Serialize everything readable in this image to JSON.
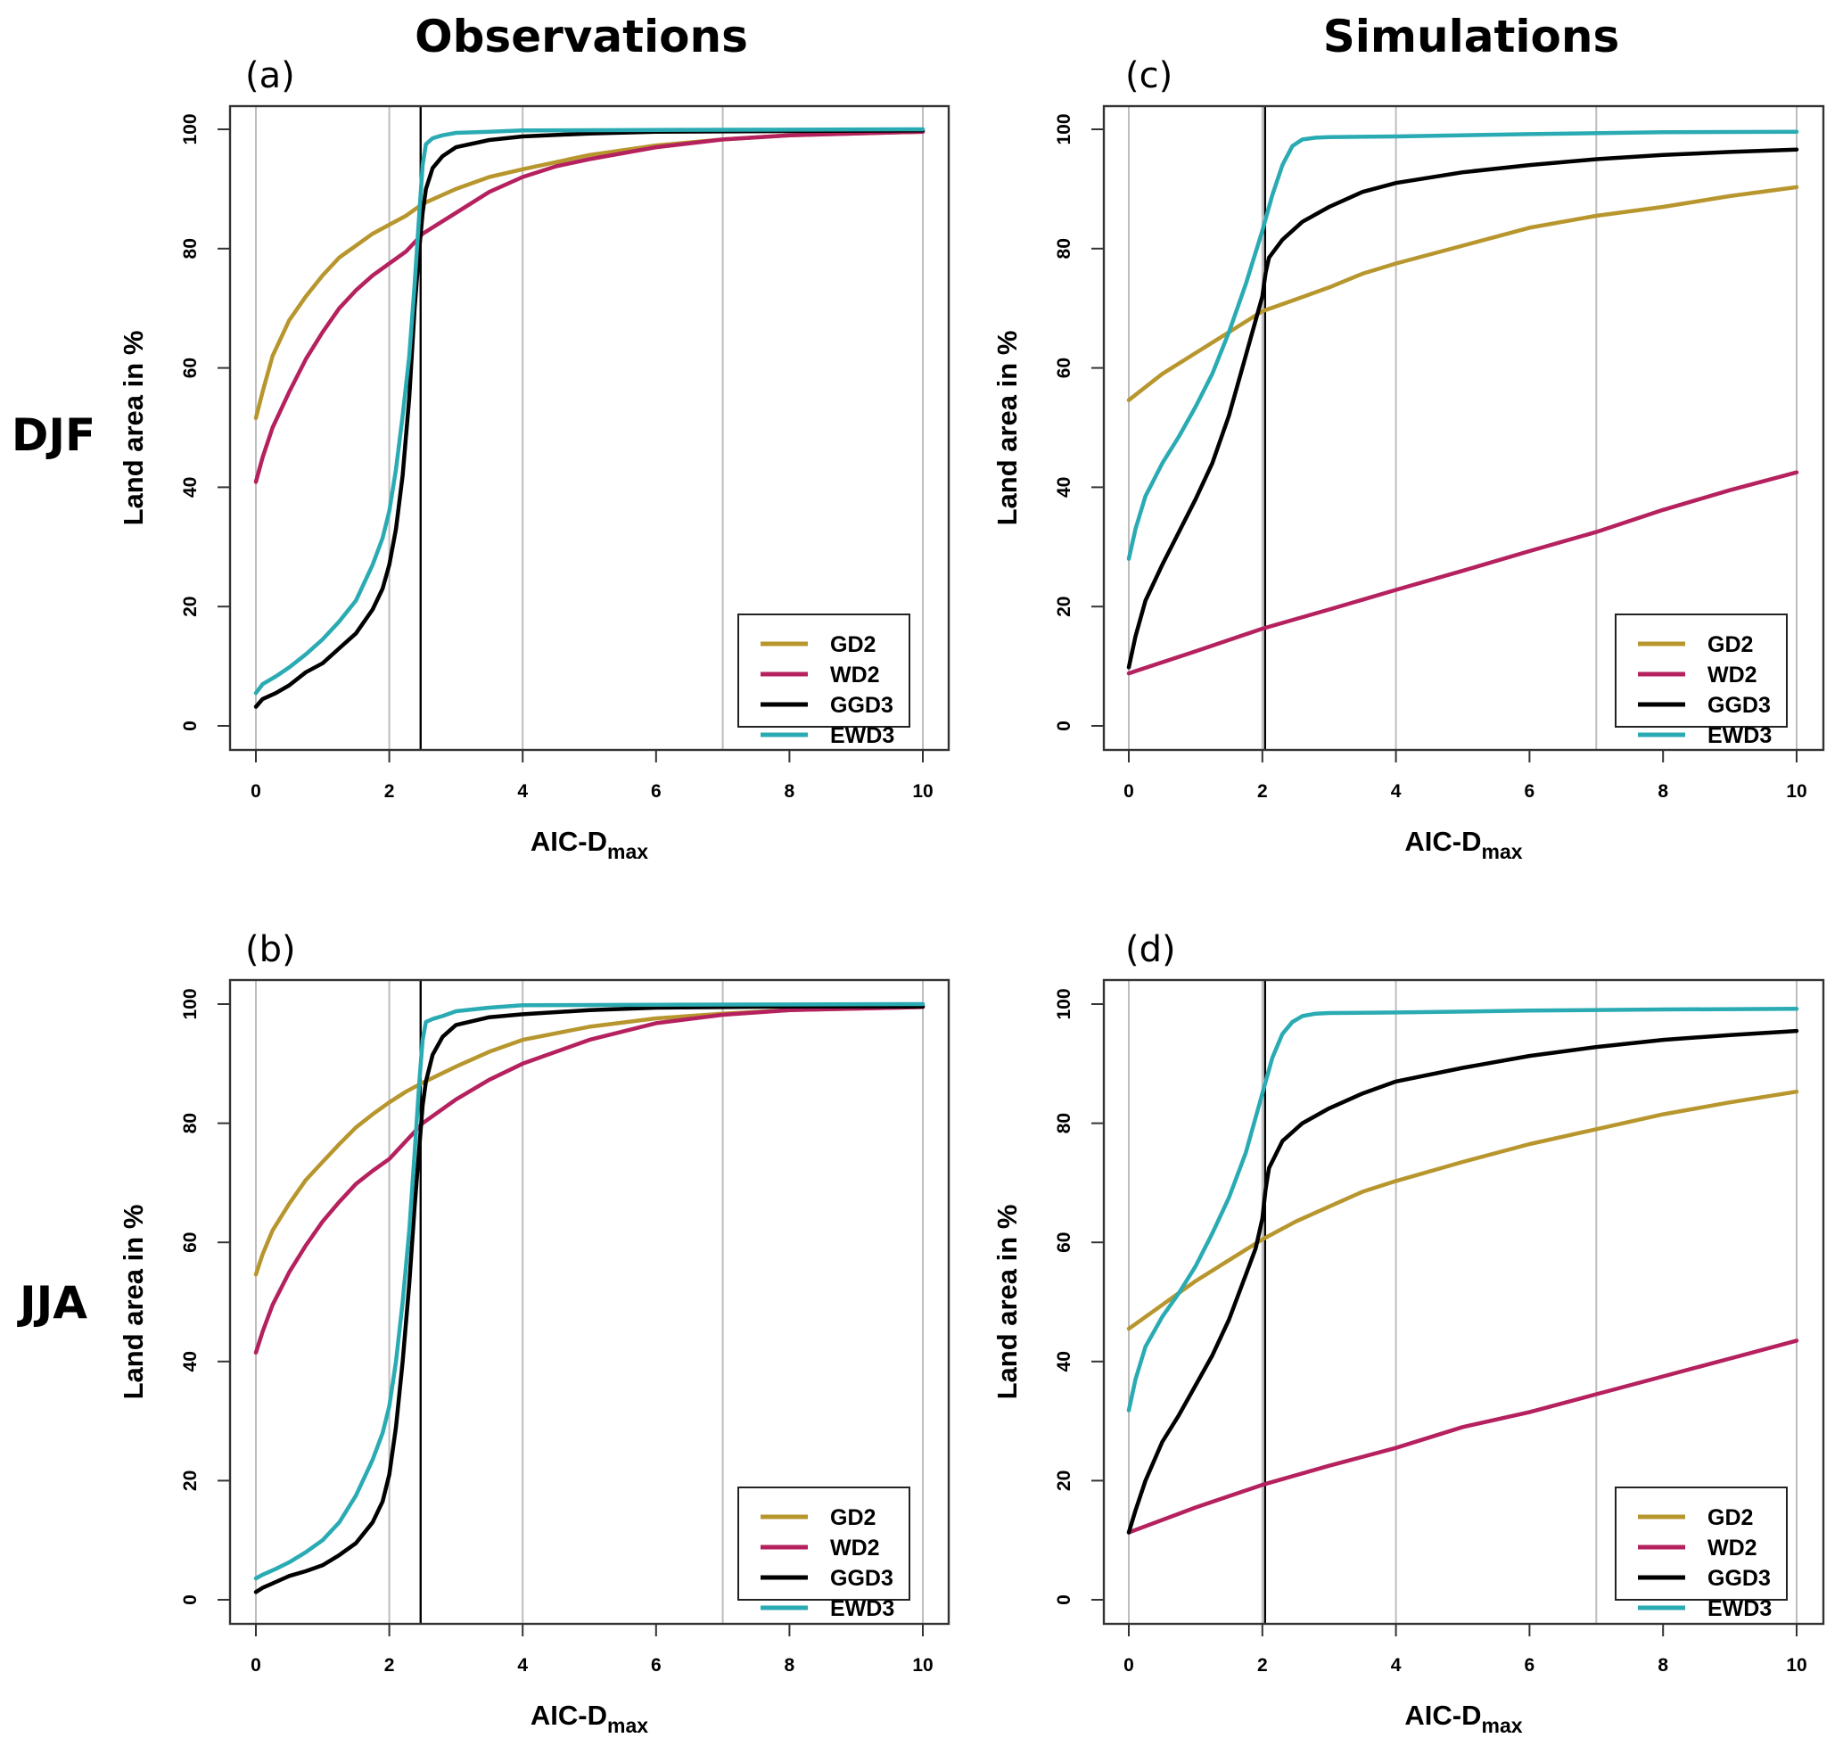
{
  "figure": {
    "column_titles": [
      "Observations",
      "Simulations"
    ],
    "row_labels": [
      "DJF",
      "JJA"
    ],
    "colors": {
      "GD2": "#b8962e",
      "WD2": "#b5215e",
      "GGD3": "#000000",
      "EWD3": "#2aabb3"
    }
  },
  "chart_data": [
    {
      "id": "a",
      "panel_label": "(a)",
      "column": "Observations",
      "row": "DJF",
      "type": "line",
      "xlabel": "AIC-D",
      "xlabel_sub": "max",
      "ylabel": "Land area in %",
      "xlim": [
        0,
        10
      ],
      "ylim": [
        0,
        100
      ],
      "xticks": [
        0,
        2,
        4,
        6,
        8,
        10
      ],
      "yticks": [
        0,
        20,
        40,
        60,
        80,
        100
      ],
      "grid_x": [
        0,
        2,
        4,
        7,
        10
      ],
      "vline_x": 2.47,
      "legend": {
        "position": "bottom-right",
        "entries": [
          "GD2",
          "WD2",
          "GGD3",
          "EWD3"
        ]
      },
      "series": [
        {
          "name": "GD2",
          "x": [
            0,
            0.1,
            0.25,
            0.5,
            0.75,
            1.0,
            1.25,
            1.5,
            1.75,
            2.0,
            2.25,
            2.5,
            3.0,
            3.5,
            4.0,
            5.0,
            6.0,
            7.0,
            8.0,
            10.0
          ],
          "y": [
            51.6,
            56,
            62,
            68,
            72,
            75.5,
            78.5,
            80.5,
            82.5,
            84,
            85.5,
            87.5,
            90,
            92,
            93.3,
            95.7,
            97.3,
            98.3,
            99,
            99.6
          ]
        },
        {
          "name": "WD2",
          "x": [
            0,
            0.1,
            0.25,
            0.5,
            0.75,
            1.0,
            1.25,
            1.5,
            1.75,
            2.0,
            2.25,
            2.5,
            3.0,
            3.5,
            4.0,
            4.5,
            5.0,
            6.0,
            7.0,
            8.0,
            10.0
          ],
          "y": [
            40.9,
            45,
            50,
            56,
            61.5,
            66,
            70,
            73,
            75.5,
            77.5,
            79.5,
            82.5,
            86,
            89.5,
            92,
            93.8,
            95,
            97,
            98.3,
            99,
            99.6
          ]
        },
        {
          "name": "GGD3",
          "x": [
            0,
            0.1,
            0.3,
            0.5,
            0.75,
            1.0,
            1.25,
            1.5,
            1.75,
            1.9,
            2.0,
            2.1,
            2.2,
            2.3,
            2.38,
            2.45,
            2.5,
            2.55,
            2.65,
            2.8,
            3.0,
            3.5,
            4.0,
            5.0,
            6.0,
            8.0,
            10.0
          ],
          "y": [
            3.2,
            4.5,
            5.5,
            6.8,
            9,
            10.5,
            13,
            15.5,
            19.5,
            23,
            27,
            33,
            42,
            55,
            70,
            80,
            86,
            90,
            93.5,
            95.5,
            97,
            98.2,
            98.8,
            99.3,
            99.6,
            99.7,
            99.8
          ]
        },
        {
          "name": "EWD3",
          "x": [
            0,
            0.1,
            0.3,
            0.5,
            0.75,
            1.0,
            1.25,
            1.5,
            1.75,
            1.9,
            2.0,
            2.1,
            2.2,
            2.3,
            2.38,
            2.45,
            2.5,
            2.55,
            2.65,
            2.8,
            3.0,
            3.5,
            4.0,
            6.0,
            10.0
          ],
          "y": [
            5.5,
            7,
            8.3,
            9.8,
            12,
            14.5,
            17.5,
            21,
            27,
            31.5,
            36,
            43,
            52,
            62,
            74,
            86,
            94,
            97.5,
            98.5,
            99,
            99.4,
            99.6,
            99.8,
            99.9,
            100
          ]
        }
      ]
    },
    {
      "id": "c",
      "panel_label": "(c)",
      "column": "Simulations",
      "row": "DJF",
      "type": "line",
      "xlabel": "AIC-D",
      "xlabel_sub": "max",
      "ylabel": "Land area in %",
      "xlim": [
        0,
        10
      ],
      "ylim": [
        0,
        100
      ],
      "xticks": [
        0,
        2,
        4,
        6,
        8,
        10
      ],
      "yticks": [
        0,
        20,
        40,
        60,
        80,
        100
      ],
      "grid_x": [
        0,
        2,
        4,
        7,
        10
      ],
      "vline_x": 2.04,
      "legend": {
        "position": "bottom-right",
        "entries": [
          "GD2",
          "WD2",
          "GGD3",
          "EWD3"
        ]
      },
      "series": [
        {
          "name": "GD2",
          "x": [
            0,
            0.5,
            1.0,
            1.5,
            2.0,
            2.5,
            3.0,
            3.5,
            4.0,
            5.0,
            6.0,
            7.0,
            8.0,
            9.0,
            10.0
          ],
          "y": [
            54.6,
            59,
            62.5,
            66,
            69.5,
            71.5,
            73.5,
            75.8,
            77.5,
            80.5,
            83.5,
            85.5,
            87,
            88.8,
            90.3
          ]
        },
        {
          "name": "WD2",
          "x": [
            0,
            1.0,
            2.0,
            3.0,
            4.0,
            5.0,
            6.0,
            7.0,
            8.0,
            9.0,
            10.0
          ],
          "y": [
            8.8,
            12.5,
            16.3,
            19.5,
            22.8,
            26,
            29.3,
            32.5,
            36.2,
            39.5,
            42.5
          ]
        },
        {
          "name": "GGD3",
          "x": [
            0,
            0.1,
            0.25,
            0.5,
            0.75,
            1.0,
            1.25,
            1.5,
            1.75,
            1.9,
            2.0,
            2.05,
            2.1,
            2.3,
            2.6,
            3.0,
            3.5,
            4.0,
            5.0,
            6.0,
            7.0,
            8.0,
            9.0,
            10.0
          ],
          "y": [
            9.8,
            15,
            21,
            27,
            32.5,
            38,
            44,
            52,
            62,
            68,
            72,
            76,
            78.5,
            81.5,
            84.5,
            87,
            89.5,
            91,
            92.8,
            94,
            95,
            95.7,
            96.2,
            96.6
          ]
        },
        {
          "name": "EWD3",
          "x": [
            0,
            0.1,
            0.25,
            0.5,
            0.75,
            1.0,
            1.25,
            1.5,
            1.75,
            2.0,
            2.15,
            2.3,
            2.45,
            2.6,
            2.8,
            3.0,
            4.0,
            6.0,
            8.0,
            10.0
          ],
          "y": [
            28,
            33,
            38.5,
            44,
            48.5,
            53.5,
            59,
            66,
            74,
            83,
            89,
            94,
            97.2,
            98.3,
            98.6,
            98.7,
            98.8,
            99.2,
            99.5,
            99.6
          ]
        }
      ]
    },
    {
      "id": "b",
      "panel_label": "(b)",
      "column": "Observations",
      "row": "JJA",
      "type": "line",
      "xlabel": "AIC-D",
      "xlabel_sub": "max",
      "ylabel": "Land area in %",
      "xlim": [
        0,
        10
      ],
      "ylim": [
        0,
        100
      ],
      "xticks": [
        0,
        2,
        4,
        6,
        8,
        10
      ],
      "yticks": [
        0,
        20,
        40,
        60,
        80,
        100
      ],
      "grid_x": [
        0,
        2,
        4,
        7,
        10
      ],
      "vline_x": 2.47,
      "legend": {
        "position": "bottom-right",
        "entries": [
          "GD2",
          "WD2",
          "GGD3",
          "EWD3"
        ]
      },
      "series": [
        {
          "name": "GD2",
          "x": [
            0,
            0.1,
            0.25,
            0.5,
            0.75,
            1.0,
            1.25,
            1.5,
            1.75,
            2.0,
            2.25,
            2.5,
            3.0,
            3.5,
            4.0,
            5.0,
            6.0,
            7.0,
            8.0,
            10.0
          ],
          "y": [
            54.6,
            58,
            62,
            66.5,
            70.5,
            73.5,
            76.5,
            79.3,
            81.5,
            83.5,
            85.3,
            86.8,
            89.5,
            92,
            94,
            96.2,
            97.6,
            98.4,
            99,
            99.5
          ]
        },
        {
          "name": "WD2",
          "x": [
            0,
            0.1,
            0.25,
            0.5,
            0.75,
            1.0,
            1.25,
            1.5,
            1.75,
            2.0,
            2.25,
            2.5,
            3.0,
            3.5,
            4.0,
            5.0,
            6.0,
            7.0,
            8.0,
            10.0
          ],
          "y": [
            41.5,
            45,
            49.5,
            55,
            59.5,
            63.5,
            66.8,
            69.8,
            72,
            74,
            77,
            80,
            84,
            87.3,
            90,
            94,
            96.8,
            98.2,
            99,
            99.5
          ]
        },
        {
          "name": "GGD3",
          "x": [
            0,
            0.1,
            0.3,
            0.5,
            0.75,
            1.0,
            1.25,
            1.5,
            1.75,
            1.9,
            2.0,
            2.1,
            2.2,
            2.3,
            2.38,
            2.45,
            2.5,
            2.55,
            2.65,
            2.8,
            3.0,
            3.5,
            4.0,
            5.0,
            6.0,
            8.0,
            10.0
          ],
          "y": [
            1.3,
            2,
            3,
            4,
            4.8,
            5.8,
            7.5,
            9.5,
            13,
            16.5,
            21,
            29,
            40,
            53,
            66,
            76,
            83,
            87,
            91.5,
            94.5,
            96.5,
            97.8,
            98.3,
            99,
            99.4,
            99.6,
            99.6
          ]
        },
        {
          "name": "EWD3",
          "x": [
            0,
            0.1,
            0.3,
            0.5,
            0.75,
            1.0,
            1.25,
            1.5,
            1.75,
            1.9,
            2.0,
            2.1,
            2.2,
            2.3,
            2.38,
            2.45,
            2.5,
            2.55,
            2.65,
            2.8,
            3.0,
            3.5,
            4.0,
            6.0,
            10.0
          ],
          "y": [
            3.6,
            4.2,
            5.2,
            6.3,
            8,
            10,
            13,
            17.5,
            23.5,
            28,
            32.5,
            40,
            50,
            62,
            75,
            87,
            94,
            97,
            97.5,
            98,
            98.8,
            99.4,
            99.8,
            99.9,
            100
          ]
        }
      ]
    },
    {
      "id": "d",
      "panel_label": "(d)",
      "column": "Simulations",
      "row": "JJA",
      "type": "line",
      "xlabel": "AIC-D",
      "xlabel_sub": "max",
      "ylabel": "Land area in %",
      "xlim": [
        0,
        10
      ],
      "ylim": [
        0,
        100
      ],
      "xticks": [
        0,
        2,
        4,
        6,
        8,
        10
      ],
      "yticks": [
        0,
        20,
        40,
        60,
        80,
        100
      ],
      "grid_x": [
        0,
        2,
        4,
        7,
        10
      ],
      "vline_x": 2.04,
      "legend": {
        "position": "bottom-right",
        "entries": [
          "GD2",
          "WD2",
          "GGD3",
          "EWD3"
        ]
      },
      "series": [
        {
          "name": "GD2",
          "x": [
            0,
            0.5,
            1.0,
            1.5,
            2.0,
            2.5,
            3.0,
            3.5,
            4.0,
            5.0,
            6.0,
            7.0,
            8.0,
            9.0,
            10.0
          ],
          "y": [
            45.5,
            49.5,
            53.5,
            57,
            60.5,
            63.5,
            66,
            68.5,
            70.3,
            73.5,
            76.5,
            79,
            81.5,
            83.5,
            85.3
          ]
        },
        {
          "name": "WD2",
          "x": [
            0,
            1.0,
            2.0,
            3.0,
            4.0,
            5.0,
            6.0,
            7.0,
            8.0,
            9.0,
            10.0
          ],
          "y": [
            11.3,
            15.5,
            19.3,
            22.5,
            25.5,
            29,
            31.5,
            34.5,
            37.5,
            40.5,
            43.5
          ]
        },
        {
          "name": "GGD3",
          "x": [
            0,
            0.1,
            0.25,
            0.5,
            0.75,
            1.0,
            1.25,
            1.5,
            1.75,
            1.9,
            2.0,
            2.05,
            2.1,
            2.3,
            2.6,
            3.0,
            3.5,
            4.0,
            5.0,
            6.0,
            7.0,
            8.0,
            9.0,
            10.0
          ],
          "y": [
            11.3,
            15,
            20,
            26.5,
            31,
            36,
            41,
            47,
            54.5,
            59,
            64,
            69,
            72.5,
            77,
            80,
            82.5,
            85,
            87,
            89.3,
            91.3,
            92.8,
            94,
            94.8,
            95.5
          ]
        },
        {
          "name": "EWD3",
          "x": [
            0,
            0.1,
            0.25,
            0.5,
            0.75,
            1.0,
            1.25,
            1.5,
            1.75,
            2.0,
            2.15,
            2.3,
            2.45,
            2.6,
            2.8,
            3.0,
            4.0,
            6.0,
            8.0,
            10.0
          ],
          "y": [
            31.8,
            37,
            42.5,
            47.5,
            51.5,
            56,
            61.5,
            67.5,
            75,
            85,
            91,
            95,
            97,
            98,
            98.4,
            98.5,
            98.6,
            98.9,
            99.1,
            99.2
          ]
        }
      ]
    }
  ]
}
